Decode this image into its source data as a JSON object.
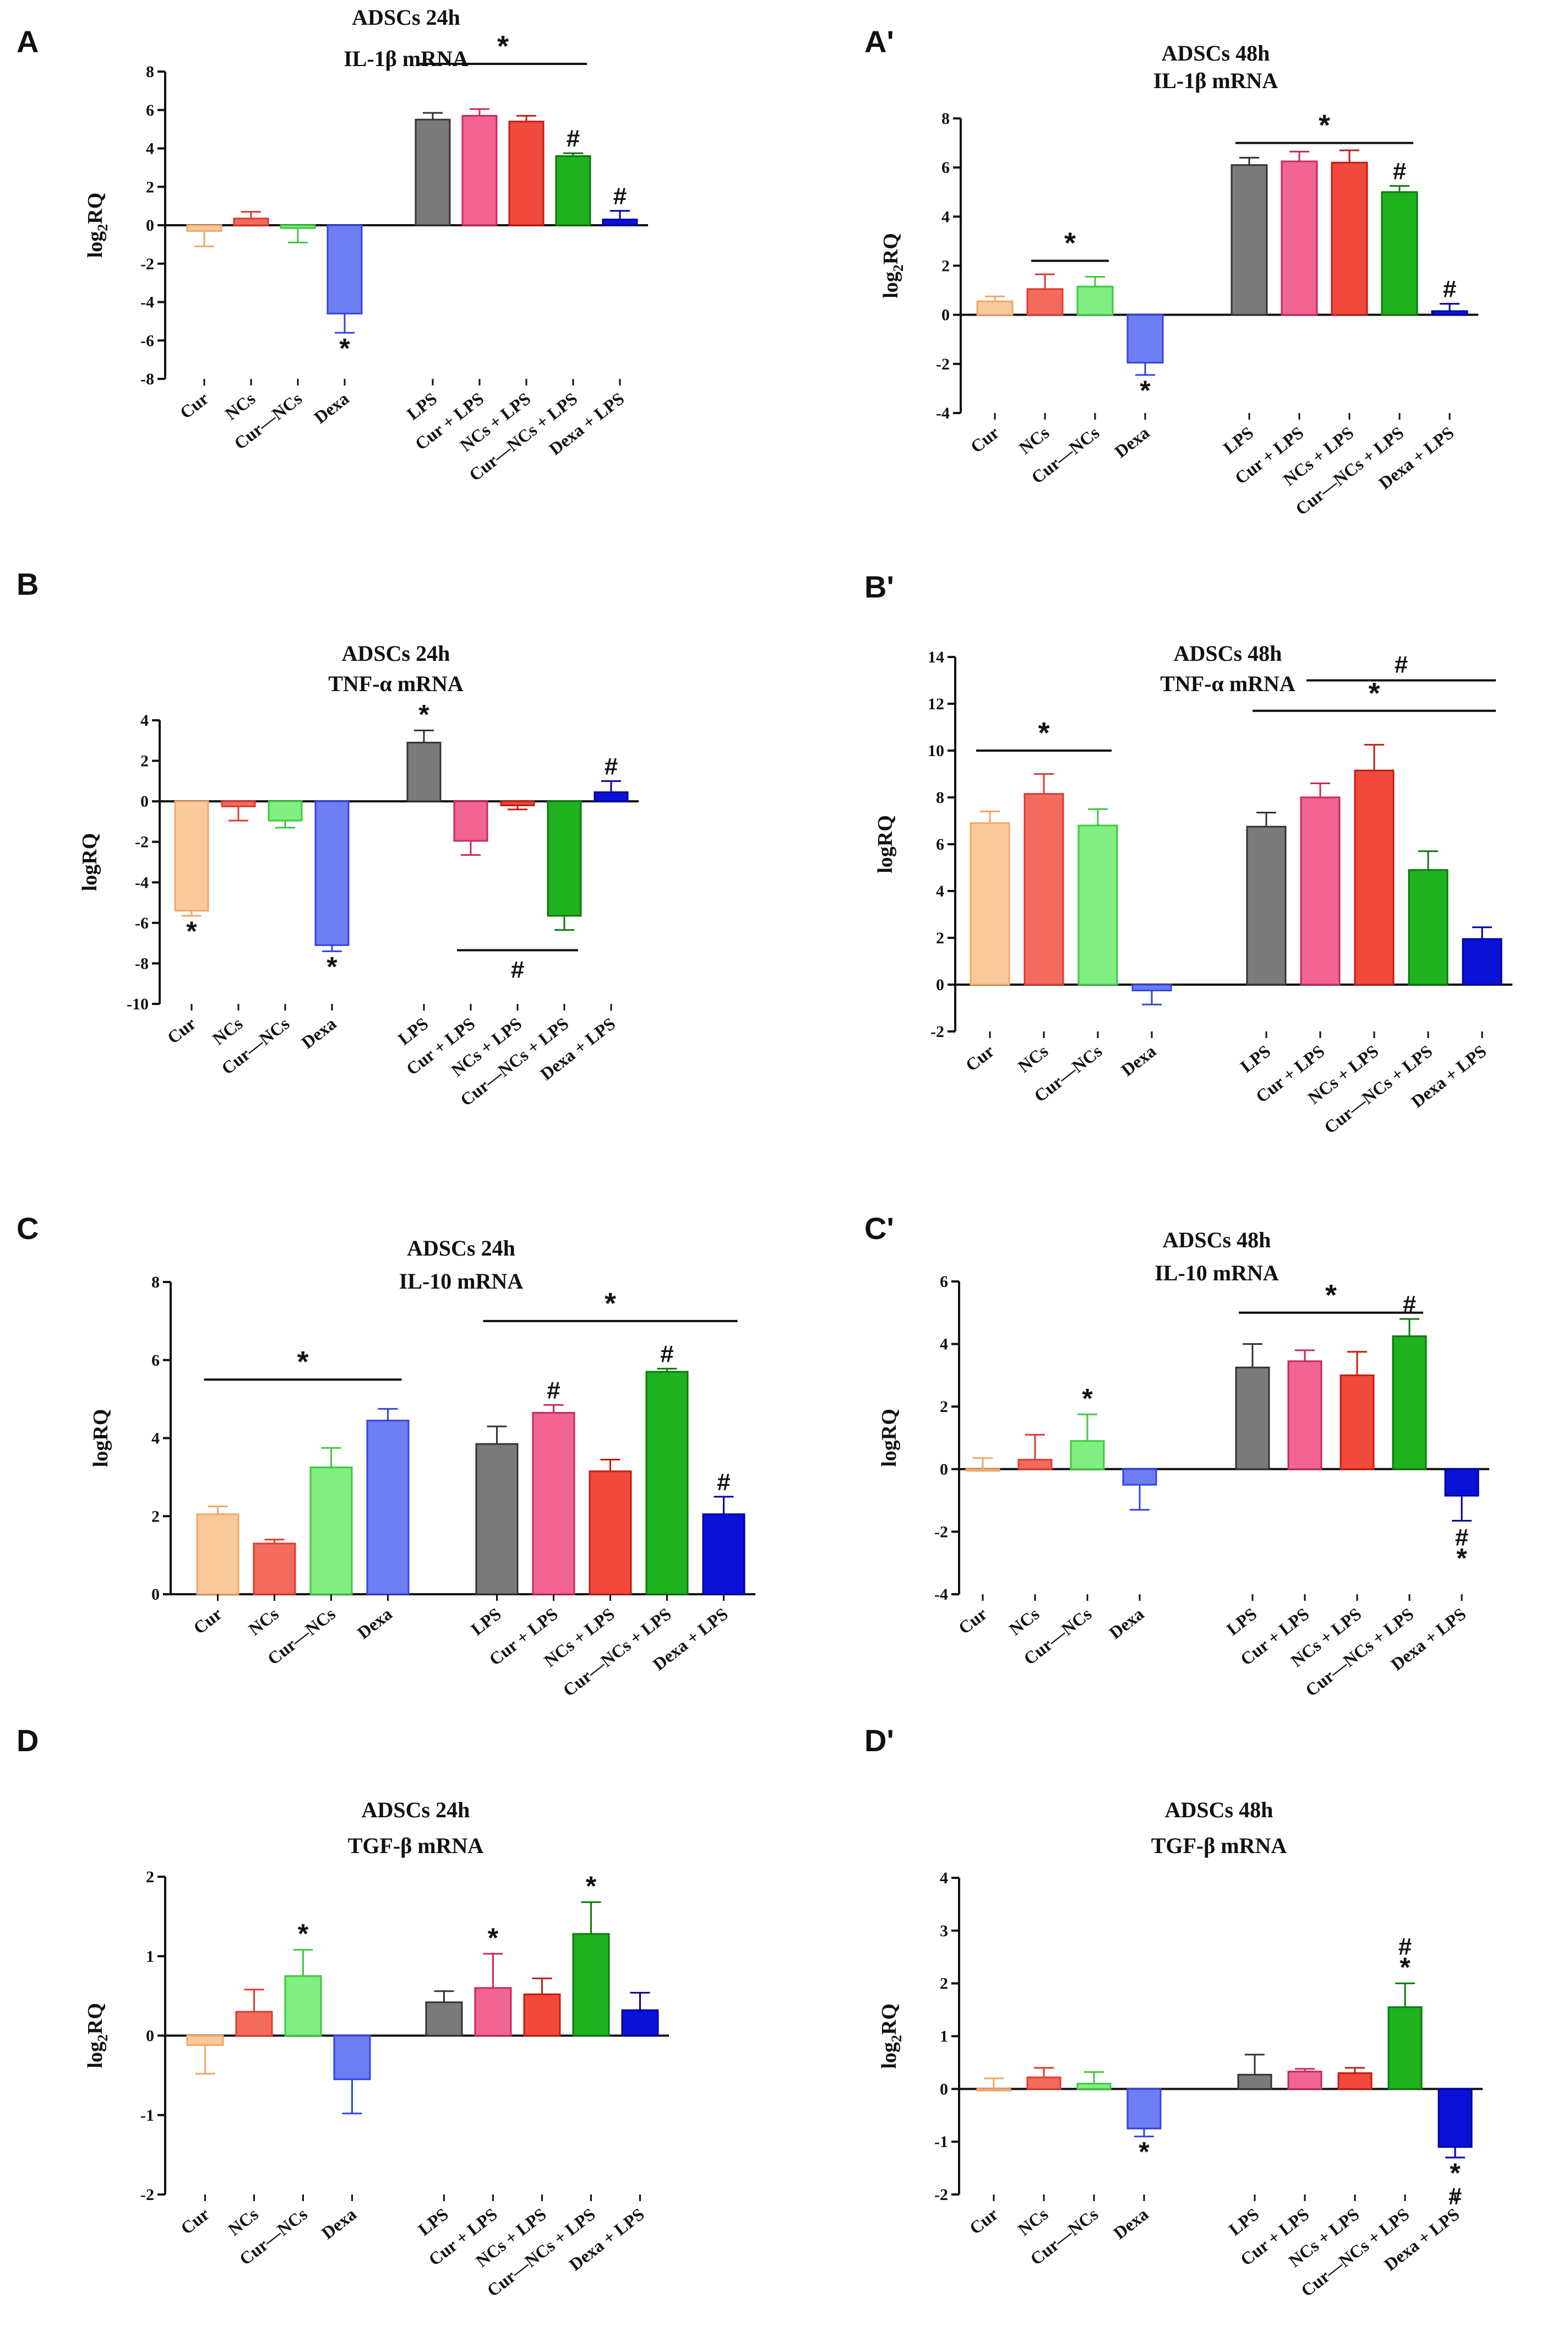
{
  "figure": {
    "colors": {
      "Cur": "#F9C99A",
      "NCs": "#F26B5E",
      "Cur—NCs": "#80EE80",
      "Dexa": "#6F7DF5",
      "LPS": "#7A7A7A",
      "Cur + LPS": "#F26492",
      "NCs + LPS": "#F14A3C",
      "Cur—NCs + LPS": "#1EB21E",
      "Dexa + LPS": "#0A12D8"
    },
    "error_color": {
      "Cur": "#F2A66A",
      "NCs": "#E03A2E",
      "Cur—NCs": "#3FC83F",
      "Dexa": "#3344DD",
      "LPS": "#333333",
      "Cur + LPS": "#C8285E",
      "NCs + LPS": "#C21D12",
      "Cur—NCs + LPS": "#0B7A0B",
      "Dexa + LPS": "#0000A0"
    }
  },
  "chart_data": [
    {
      "panel": "A",
      "type": "bar",
      "title": [
        "ADSCs 24h",
        "IL-1β mRNA"
      ],
      "ylabel": "log2RQ",
      "ylim": [
        -8,
        8
      ],
      "yticks": [
        -8,
        -6,
        -4,
        -2,
        0,
        2,
        4,
        6,
        8
      ],
      "categories": [
        "Cur",
        "NCs",
        "Cur—NCs",
        "Dexa",
        "LPS",
        "Cur + LPS",
        "NCs + LPS",
        "Cur—NCs  + LPS",
        "Dexa  + LPS"
      ],
      "values": [
        -0.3,
        0.35,
        -0.15,
        -4.6,
        5.5,
        5.7,
        5.4,
        3.6,
        0.3
      ],
      "errors": [
        0.8,
        0.35,
        0.75,
        1.0,
        0.35,
        0.35,
        0.3,
        0.15,
        0.45
      ],
      "bar_marks": [
        null,
        null,
        null,
        "*",
        null,
        null,
        null,
        "#",
        "#"
      ],
      "sig_lines": [
        {
          "from": 4,
          "to": 7,
          "y": 8.4,
          "label": "*"
        }
      ]
    },
    {
      "panel": "A'",
      "type": "bar",
      "title": [
        "ADSCs 48h",
        "IL-1β mRNA"
      ],
      "ylabel": "log2RQ",
      "ylim": [
        -4,
        8
      ],
      "yticks": [
        -4,
        -2,
        0,
        2,
        4,
        6,
        8
      ],
      "categories": [
        "Cur",
        "NCs",
        "Cur—NCs",
        "Dexa",
        "LPS",
        "Cur + LPS",
        "NCs + LPS",
        "Cur—NCs + LPS",
        "Dexa + LPS"
      ],
      "values": [
        0.55,
        1.05,
        1.15,
        -1.95,
        6.1,
        6.25,
        6.2,
        5.0,
        0.15
      ],
      "errors": [
        0.2,
        0.6,
        0.4,
        0.5,
        0.3,
        0.4,
        0.5,
        0.25,
        0.3
      ],
      "bar_marks": [
        null,
        null,
        null,
        "*",
        null,
        null,
        null,
        "#",
        "#"
      ],
      "sig_lines": [
        {
          "from": 1,
          "to": 2,
          "y": 2.2,
          "label": "*"
        },
        {
          "from": 4,
          "to": 7,
          "y": 7.0,
          "label": "*"
        }
      ]
    },
    {
      "panel": "B",
      "type": "bar",
      "title": [
        "ADSCs 24h",
        "TNF-α mRNA"
      ],
      "ylabel": "logRQ",
      "ylim": [
        -10,
        4
      ],
      "yticks": [
        -10,
        -8,
        -6,
        -4,
        -2,
        0,
        2,
        4
      ],
      "categories": [
        "Cur",
        "NCs",
        "Cur—NCs",
        "Dexa",
        "LPS",
        "Cur + LPS",
        "NCs + LPS",
        "Cur—NCs + LPS",
        "Dexa + LPS"
      ],
      "values": [
        -5.4,
        -0.25,
        -0.95,
        -7.1,
        2.9,
        -1.95,
        -0.2,
        -5.65,
        0.45
      ],
      "errors": [
        0.25,
        0.7,
        0.35,
        0.3,
        0.6,
        0.7,
        0.2,
        0.7,
        0.55
      ],
      "bar_marks": [
        "*",
        null,
        null,
        "*",
        "*",
        null,
        null,
        null,
        "#"
      ],
      "sig_lines": [
        {
          "from": 5,
          "to": 7,
          "y": -7.35,
          "label": "#",
          "label_below": true
        }
      ]
    },
    {
      "panel": "B'",
      "type": "bar",
      "title": [
        "ADSCs 48h",
        "TNF-α mRNA"
      ],
      "ylabel": "logRQ",
      "ylim": [
        -2,
        14
      ],
      "yticks": [
        -2,
        0,
        2,
        4,
        6,
        8,
        10,
        12,
        14
      ],
      "categories": [
        "Cur",
        "NCs",
        "Cur—NCs",
        "Dexa",
        "LPS",
        "Cur + LPS",
        "NCs + LPS",
        "Cur—NCs + LPS",
        "Dexa + LPS"
      ],
      "values": [
        6.9,
        8.15,
        6.8,
        -0.25,
        6.75,
        8.0,
        9.15,
        4.9,
        1.95
      ],
      "errors": [
        0.5,
        0.85,
        0.7,
        0.6,
        0.6,
        0.6,
        1.1,
        0.8,
        0.5
      ],
      "bar_marks": [
        null,
        null,
        null,
        null,
        null,
        null,
        null,
        null,
        null
      ],
      "sig_lines": [
        {
          "from": 0,
          "to": 2,
          "y": 10.0,
          "label": "*"
        },
        {
          "from": 4,
          "to": 8,
          "y": 11.7,
          "label": "*"
        },
        {
          "from": 5,
          "to": 8,
          "y": 13.0,
          "label": "#"
        }
      ]
    },
    {
      "panel": "C",
      "type": "bar",
      "title": [
        "ADSCs 24h",
        "IL-10 mRNA"
      ],
      "ylabel": "logRQ",
      "ylim": [
        0,
        8
      ],
      "yticks": [
        0,
        2,
        4,
        6,
        8
      ],
      "categories": [
        "Cur",
        "NCs",
        "Cur—NCs",
        "Dexa",
        "LPS",
        "Cur + LPS",
        "NCs + LPS",
        "Cur—NCs + LPS",
        "Dexa + LPS"
      ],
      "values": [
        2.05,
        1.3,
        3.25,
        4.45,
        3.85,
        4.65,
        3.15,
        5.7,
        2.05
      ],
      "errors": [
        0.2,
        0.1,
        0.5,
        0.3,
        0.45,
        0.2,
        0.3,
        0.08,
        0.45
      ],
      "bar_marks": [
        null,
        null,
        null,
        null,
        null,
        "#",
        null,
        "#",
        "#"
      ],
      "sig_lines": [
        {
          "from": 0,
          "to": 3,
          "y": 5.5,
          "label": "*"
        },
        {
          "from": 4,
          "to": 8,
          "y": 7.0,
          "label": "*"
        }
      ]
    },
    {
      "panel": "C'",
      "type": "bar",
      "title": [
        "ADSCs 48h",
        "IL-10 mRNA"
      ],
      "ylabel": "logRQ",
      "ylim": [
        -4,
        6
      ],
      "yticks": [
        -4,
        -2,
        0,
        2,
        4,
        6
      ],
      "categories": [
        "Cur",
        "NCs",
        "Cur—NCs",
        "Dexa",
        "LPS",
        "Cur + LPS",
        "NCs + LPS",
        "Cur—NCs + LPS",
        "Dexa + LPS"
      ],
      "values": [
        0.0,
        0.3,
        0.9,
        -0.5,
        3.25,
        3.45,
        3.0,
        4.25,
        -0.85
      ],
      "errors": [
        0.35,
        0.8,
        0.85,
        0.8,
        0.75,
        0.35,
        0.75,
        0.55,
        0.8
      ],
      "bar_marks": [
        null,
        null,
        "*",
        null,
        null,
        null,
        null,
        "#",
        "#*"
      ],
      "sig_lines": [
        {
          "from": 4,
          "to": 7,
          "y": 5.0,
          "label": "*"
        }
      ]
    },
    {
      "panel": "D",
      "type": "bar",
      "title": [
        "ADSCs 24h",
        "TGF-β mRNA"
      ],
      "ylabel": "log2RQ",
      "ylim": [
        -2,
        2
      ],
      "yticks": [
        -2,
        -1,
        0,
        1,
        2
      ],
      "categories": [
        "Cur",
        "NCs",
        "Cur—NCs",
        "Dexa",
        "LPS",
        "Cur + LPS",
        "NCs + LPS",
        "Cur—NCs + LPS",
        "Dexa + LPS"
      ],
      "values": [
        -0.12,
        0.3,
        0.75,
        -0.55,
        0.42,
        0.6,
        0.52,
        1.28,
        0.32
      ],
      "errors": [
        0.36,
        0.28,
        0.33,
        0.43,
        0.14,
        0.43,
        0.2,
        0.4,
        0.22
      ],
      "bar_marks": [
        null,
        null,
        "*",
        null,
        null,
        "*",
        null,
        "*",
        null
      ],
      "sig_lines": []
    },
    {
      "panel": "D'",
      "type": "bar",
      "title": [
        "ADSCs 48h",
        "TGF-β mRNA"
      ],
      "ylabel": "log2RQ",
      "ylim": [
        -2,
        4
      ],
      "yticks": [
        -2,
        -1,
        0,
        1,
        2,
        3,
        4
      ],
      "categories": [
        "Cur",
        "NCs",
        "Cur—NCs",
        "Dexa",
        "LPS",
        "Cur + LPS",
        "NCs + LPS",
        "Cur—NCs + LPS",
        "Dexa + LPS"
      ],
      "values": [
        0.0,
        0.22,
        0.1,
        -0.75,
        0.27,
        0.33,
        0.3,
        1.55,
        -1.1
      ],
      "errors": [
        0.2,
        0.18,
        0.22,
        0.15,
        0.38,
        0.05,
        0.1,
        0.45,
        0.2
      ],
      "bar_marks": [
        null,
        null,
        null,
        "*",
        null,
        null,
        null,
        "#*",
        "*#"
      ],
      "sig_lines": []
    }
  ]
}
